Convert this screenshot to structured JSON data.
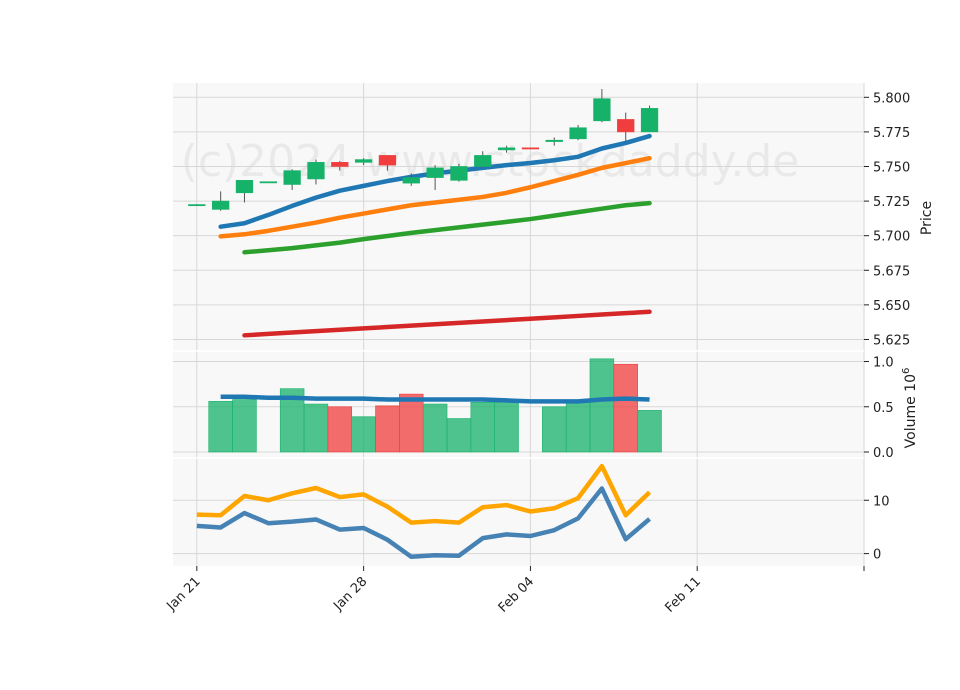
{
  "chart_data": {
    "type": "candlestick",
    "watermark": "(c)2024 www.stockdaddy.de",
    "x_ticks": [
      {
        "date": "2024-01-21",
        "label": "Jan 21"
      },
      {
        "date": "2024-01-28",
        "label": "Jan 28"
      },
      {
        "date": "2024-02-04",
        "label": "Feb 04"
      },
      {
        "date": "2024-02-11",
        "label": "Feb 11"
      }
    ],
    "x_range": [
      "2024-01-20",
      "2024-02-18"
    ],
    "price_panel": {
      "ylabel": "Price",
      "ylim": [
        5.621,
        5.806
      ],
      "yticks": [
        "5.625",
        "5.650",
        "5.675",
        "5.700",
        "5.725",
        "5.750",
        "5.775",
        "5.800"
      ],
      "candles": [
        {
          "date": "2024-01-21",
          "open": 5.7225,
          "high": 5.7228,
          "low": 5.7222,
          "close": 5.7225
        },
        {
          "date": "2024-01-22",
          "open": 5.719,
          "high": 5.732,
          "low": 5.718,
          "close": 5.725
        },
        {
          "date": "2024-01-23",
          "open": 5.731,
          "high": 5.74,
          "low": 5.724,
          "close": 5.74
        },
        {
          "date": "2024-01-24",
          "open": 5.739,
          "high": 5.739,
          "low": 5.739,
          "close": 5.739
        },
        {
          "date": "2024-01-25",
          "open": 5.737,
          "high": 5.748,
          "low": 5.733,
          "close": 5.747
        },
        {
          "date": "2024-01-26",
          "open": 5.741,
          "high": 5.755,
          "low": 5.737,
          "close": 5.753
        },
        {
          "date": "2024-01-27",
          "open": 5.753,
          "high": 5.754,
          "low": 5.747,
          "close": 5.75
        },
        {
          "date": "2024-01-28",
          "open": 5.753,
          "high": 5.756,
          "low": 5.751,
          "close": 5.755
        },
        {
          "date": "2024-01-29",
          "open": 5.758,
          "high": 5.758,
          "low": 5.747,
          "close": 5.751
        },
        {
          "date": "2024-01-30",
          "open": 5.738,
          "high": 5.745,
          "low": 5.736,
          "close": 5.742
        },
        {
          "date": "2024-01-31",
          "open": 5.742,
          "high": 5.751,
          "low": 5.733,
          "close": 5.749
        },
        {
          "date": "2024-02-01",
          "open": 5.74,
          "high": 5.752,
          "low": 5.739,
          "close": 5.75
        },
        {
          "date": "2024-02-02",
          "open": 5.75,
          "high": 5.761,
          "low": 5.749,
          "close": 5.758
        },
        {
          "date": "2024-02-03",
          "open": 5.762,
          "high": 5.765,
          "low": 5.76,
          "close": 5.7635
        },
        {
          "date": "2024-02-04",
          "open": 5.7635,
          "high": 5.7635,
          "low": 5.763,
          "close": 5.763
        },
        {
          "date": "2024-02-05",
          "open": 5.768,
          "high": 5.771,
          "low": 5.765,
          "close": 5.769
        },
        {
          "date": "2024-02-06",
          "open": 5.77,
          "high": 5.78,
          "low": 5.769,
          "close": 5.778
        },
        {
          "date": "2024-02-07",
          "open": 5.783,
          "high": 5.806,
          "low": 5.782,
          "close": 5.799
        },
        {
          "date": "2024-02-08",
          "open": 5.784,
          "high": 5.789,
          "low": 5.768,
          "close": 5.775
        },
        {
          "date": "2024-02-09",
          "open": 5.775,
          "high": 5.794,
          "low": 5.775,
          "close": 5.792
        }
      ],
      "moving_averages": [
        {
          "color": "#1f77b4",
          "values": [
            5.7065,
            5.709,
            5.715,
            5.7215,
            5.7275,
            5.7325,
            5.736,
            5.7395,
            5.7425,
            5.745,
            5.747,
            5.749,
            5.751,
            5.7525,
            5.7545,
            5.757,
            5.763,
            5.767,
            5.772
          ]
        },
        {
          "color": "#ff7f0e",
          "values": [
            5.6995,
            5.701,
            5.7035,
            5.7065,
            5.7095,
            5.713,
            5.716,
            5.719,
            5.722,
            5.724,
            5.726,
            5.728,
            5.731,
            5.735,
            5.7395,
            5.744,
            5.749,
            5.7525,
            5.756
          ]
        },
        {
          "color": "#2ca02c",
          "values": [
            5.688,
            5.6895,
            5.691,
            5.693,
            5.695,
            5.6975,
            5.6998,
            5.702,
            5.704,
            5.706,
            5.708,
            5.71,
            5.712,
            5.7145,
            5.717,
            5.7195,
            5.722,
            5.7235
          ]
        },
        {
          "color": "#d62728",
          "values": [
            5.628,
            5.629,
            5.63,
            5.631,
            5.632,
            5.633,
            5.634,
            5.635,
            5.636,
            5.637,
            5.638,
            5.639,
            5.64,
            5.641,
            5.642,
            5.643,
            5.644,
            5.645
          ]
        }
      ]
    },
    "volume_panel": {
      "ylabel": "Volume  10",
      "ylabel_exponent": "6",
      "ylim": [
        0,
        1.05
      ],
      "yticks": [
        "0.0",
        "0.5",
        "1.0"
      ],
      "bars": [
        {
          "date": "2024-01-22",
          "value": 0.56,
          "direction": "up"
        },
        {
          "date": "2024-01-23",
          "value": 0.58,
          "direction": "up"
        },
        {
          "date": "2024-01-25",
          "value": 0.7,
          "direction": "up"
        },
        {
          "date": "2024-01-26",
          "value": 0.53,
          "direction": "up"
        },
        {
          "date": "2024-01-27",
          "value": 0.5,
          "direction": "down"
        },
        {
          "date": "2024-01-28",
          "value": 0.39,
          "direction": "up"
        },
        {
          "date": "2024-01-29",
          "value": 0.51,
          "direction": "down"
        },
        {
          "date": "2024-01-30",
          "value": 0.64,
          "direction": "down"
        },
        {
          "date": "2024-01-31",
          "value": 0.53,
          "direction": "up"
        },
        {
          "date": "2024-02-01",
          "value": 0.37,
          "direction": "up"
        },
        {
          "date": "2024-02-02",
          "value": 0.55,
          "direction": "up"
        },
        {
          "date": "2024-02-03",
          "value": 0.55,
          "direction": "up"
        },
        {
          "date": "2024-02-05",
          "value": 0.5,
          "direction": "up"
        },
        {
          "date": "2024-02-06",
          "value": 0.55,
          "direction": "up"
        },
        {
          "date": "2024-02-07",
          "value": 1.03,
          "direction": "up"
        },
        {
          "date": "2024-02-08",
          "value": 0.97,
          "direction": "down"
        },
        {
          "date": "2024-02-09",
          "value": 0.46,
          "direction": "up"
        }
      ],
      "average_line": {
        "color": "#1f77b4",
        "values": [
          0.61,
          0.61,
          0.6,
          0.6,
          0.59,
          0.59,
          0.59,
          0.58,
          0.58,
          0.58,
          0.58,
          0.58,
          0.57,
          0.56,
          0.56,
          0.56,
          0.58,
          0.59,
          0.58
        ]
      }
    },
    "indicator_panel": {
      "ylim": [
        -1.2,
        16.8
      ],
      "yticks": [
        "0",
        "10"
      ],
      "series": [
        {
          "color": "#ffa500",
          "values": [
            7.3,
            7.2,
            10.8,
            10.0,
            11.3,
            12.3,
            10.6,
            11.1,
            8.8,
            5.8,
            6.1,
            5.8,
            8.7,
            9.1,
            7.9,
            8.5,
            10.4,
            16.4,
            7.2,
            11.5
          ]
        },
        {
          "color": "#4682b4",
          "values": [
            5.2,
            4.9,
            7.6,
            5.7,
            6.0,
            6.4,
            4.5,
            4.8,
            2.6,
            -0.6,
            -0.3,
            -0.4,
            2.9,
            3.6,
            3.3,
            4.4,
            6.6,
            12.2,
            2.7,
            6.5
          ]
        }
      ]
    },
    "colors": {
      "up": "#17b26a",
      "down": "#f03e3e",
      "panel_bg": "#f8f8f8",
      "grid": "#d7d7d7"
    }
  }
}
